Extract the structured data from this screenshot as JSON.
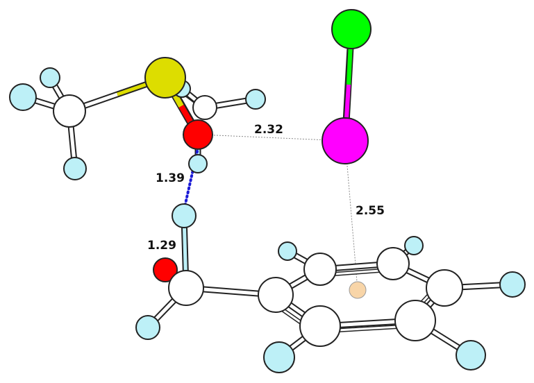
{
  "distances": {
    "o_i": "2.32",
    "h_o_top": "1.39",
    "o_h_bottom": "1.29",
    "i_ring": "2.55"
  },
  "colors": {
    "carbon": "#ffffff",
    "hydrogen": "#bdf0f7",
    "oxygen": "#ff0000",
    "sulfur": "#dddd00",
    "chlorine": "#00ff00",
    "iodine": "#ff00ff",
    "ring_center": "#f8d5a8",
    "hbond": "#1a1ad6"
  }
}
